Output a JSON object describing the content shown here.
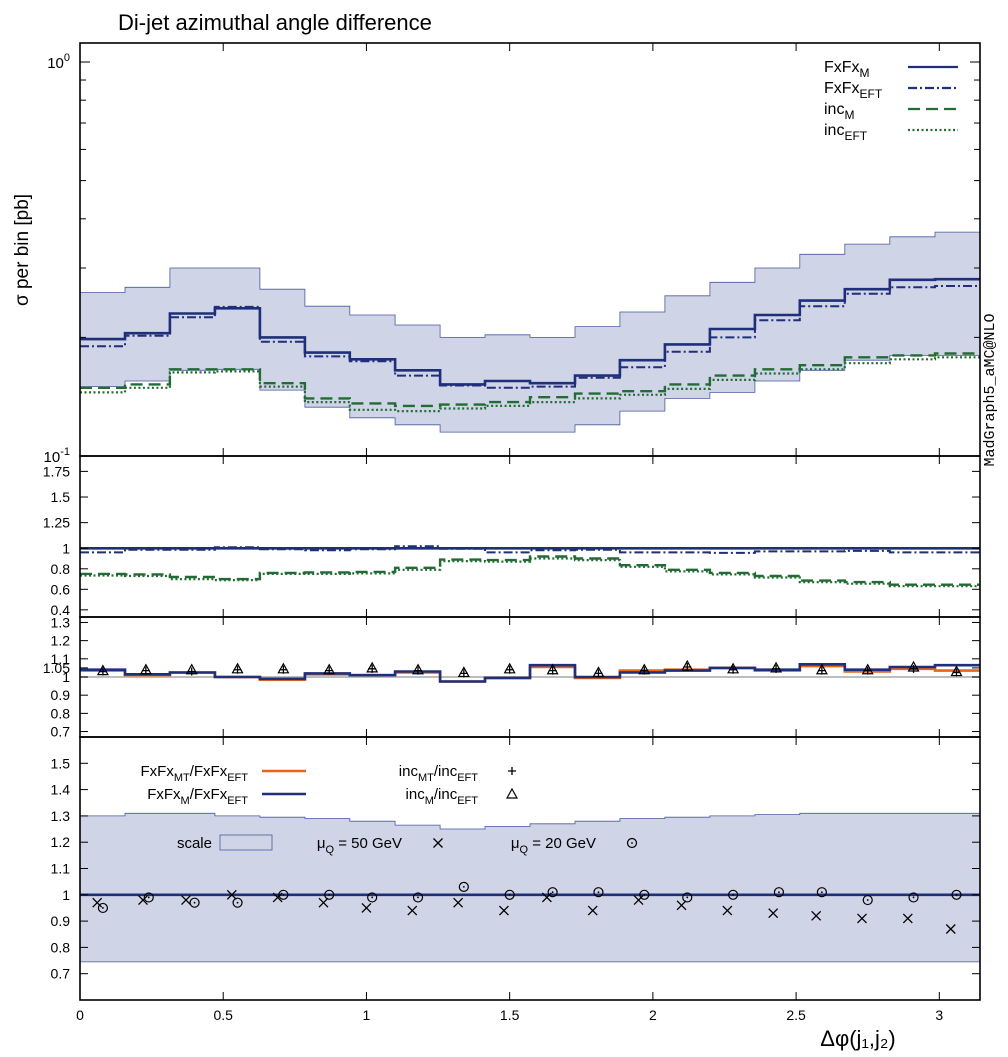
{
  "title": "Di-jet azimuthal angle difference",
  "watermark": "MadGraph5_aMC@NLO",
  "xlabel": "Δφ(j₁,j₂)",
  "colors": {
    "navy": "#1f2f7a",
    "green": "#236b35",
    "orange": "#e8641a",
    "band": "#cfd4e6",
    "band_edge": "#4a5aa0"
  },
  "chart_data": [
    {
      "panel": "main",
      "type": "line",
      "ylabel": "σ per bin [pb]",
      "yscale": "log",
      "ylim": [
        0.1,
        1.0
      ],
      "ytick_labels": [
        "10⁻¹",
        "10⁰"
      ],
      "x_edges": [
        0,
        0.157,
        0.314,
        0.471,
        0.628,
        0.785,
        0.942,
        1.1,
        1.257,
        1.414,
        1.571,
        1.728,
        1.885,
        2.042,
        2.199,
        2.356,
        2.513,
        2.67,
        2.827,
        2.985,
        3.142
      ],
      "series": [
        {
          "name": "FxFx_M",
          "style": "solid",
          "values": [
            0.198,
            0.205,
            0.23,
            0.237,
            0.2,
            0.183,
            0.176,
            0.165,
            0.152,
            0.155,
            0.153,
            0.16,
            0.175,
            0.192,
            0.21,
            0.228,
            0.248,
            0.265,
            0.28,
            0.281
          ]
        },
        {
          "name": "FxFx_EFT",
          "style": "dashdot",
          "values": [
            0.19,
            0.202,
            0.225,
            0.239,
            0.195,
            0.179,
            0.174,
            0.16,
            0.151,
            0.149,
            0.15,
            0.158,
            0.168,
            0.184,
            0.2,
            0.221,
            0.24,
            0.258,
            0.268,
            0.27
          ]
        },
        {
          "name": "inc_M",
          "style": "dashed",
          "values": [
            0.149,
            0.152,
            0.166,
            0.166,
            0.153,
            0.14,
            0.136,
            0.134,
            0.135,
            0.137,
            0.141,
            0.144,
            0.146,
            0.152,
            0.16,
            0.166,
            0.17,
            0.178,
            0.18,
            0.182
          ]
        },
        {
          "name": "inc_EFT",
          "style": "dotted",
          "values": [
            0.145,
            0.149,
            0.163,
            0.164,
            0.15,
            0.137,
            0.131,
            0.13,
            0.132,
            0.134,
            0.137,
            0.14,
            0.143,
            0.148,
            0.156,
            0.162,
            0.166,
            0.172,
            0.176,
            0.178
          ]
        }
      ],
      "band": {
        "name": "scale",
        "lower": [
          0.15,
          0.155,
          0.165,
          0.166,
          0.147,
          0.133,
          0.125,
          0.12,
          0.115,
          0.115,
          0.115,
          0.12,
          0.13,
          0.14,
          0.145,
          0.155,
          0.165,
          0.175,
          0.18,
          0.18
        ],
        "upper": [
          0.26,
          0.268,
          0.3,
          0.3,
          0.265,
          0.24,
          0.228,
          0.215,
          0.2,
          0.203,
          0.2,
          0.213,
          0.232,
          0.255,
          0.276,
          0.3,
          0.325,
          0.345,
          0.36,
          0.37
        ]
      },
      "legend_position": "top-right",
      "legend": [
        "FxFx_M",
        "FxFx_EFT",
        "inc_M",
        "inc_EFT"
      ]
    },
    {
      "panel": "ratio1",
      "type": "line",
      "ylim": [
        0.33,
        1.9
      ],
      "yticks": [
        0.4,
        0.6,
        0.8,
        1,
        1.25,
        1.5,
        1.75
      ],
      "ytick_labels": [
        "0.4",
        "0.6",
        "0.8",
        "1",
        "1.25",
        "1.5",
        "1.75"
      ],
      "series": [
        {
          "name": "FxFx_M",
          "style": "solid",
          "values": [
            1,
            1,
            1,
            1,
            1,
            1,
            1,
            1,
            1,
            1,
            1,
            1,
            1,
            1,
            1,
            1,
            1,
            1,
            1,
            1
          ]
        },
        {
          "name": "FxFx_EFT",
          "style": "dashdot",
          "values": [
            0.96,
            0.985,
            0.985,
            1.01,
            0.99,
            0.98,
            0.99,
            1.02,
            0.995,
            0.96,
            0.98,
            0.985,
            0.96,
            0.96,
            0.955,
            0.97,
            0.97,
            0.975,
            0.96,
            0.96
          ]
        },
        {
          "name": "inc_M",
          "style": "dashed",
          "values": [
            0.75,
            0.745,
            0.72,
            0.7,
            0.76,
            0.765,
            0.77,
            0.81,
            0.89,
            0.885,
            0.92,
            0.9,
            0.835,
            0.79,
            0.76,
            0.73,
            0.685,
            0.67,
            0.645,
            0.645
          ]
        },
        {
          "name": "inc_EFT",
          "style": "dotted",
          "values": [
            0.735,
            0.73,
            0.7,
            0.69,
            0.75,
            0.75,
            0.755,
            0.79,
            0.875,
            0.87,
            0.9,
            0.885,
            0.82,
            0.775,
            0.745,
            0.715,
            0.67,
            0.655,
            0.63,
            0.63
          ]
        }
      ]
    },
    {
      "panel": "ratio2",
      "type": "line",
      "ylim": [
        0.67,
        1.33
      ],
      "yticks": [
        0.7,
        0.8,
        0.9,
        1,
        1.05,
        1.1,
        1.2,
        1.3
      ],
      "ytick_labels": [
        "0.7",
        "0.8",
        "0.9",
        "1",
        "1.05",
        "1.1",
        "1.2",
        "1.3"
      ],
      "series": [
        {
          "name": "FxFx_MT/FxFx_EFT",
          "style": "solid",
          "values": [
            1.035,
            1.01,
            1.025,
            1.0,
            0.985,
            1.015,
            1.01,
            1.025,
            0.975,
            0.995,
            1.055,
            0.995,
            1.035,
            1.04,
            1.05,
            1.035,
            1.06,
            1.03,
            1.045,
            1.035
          ]
        },
        {
          "name": "FxFx_M/FxFx_EFT",
          "style": "solid",
          "values": [
            1.04,
            1.015,
            1.025,
            1.0,
            0.99,
            1.02,
            1.01,
            1.03,
            0.975,
            0.995,
            1.065,
            1.0,
            1.025,
            1.035,
            1.05,
            1.04,
            1.07,
            1.04,
            1.055,
            1.065
          ]
        }
      ],
      "markers": [
        {
          "name": "inc_MT/inc_EFT",
          "symbol": "plus",
          "x": [
            0.08,
            0.23,
            0.39,
            0.55,
            0.71,
            0.87,
            1.02,
            1.18,
            1.34,
            1.5,
            1.65,
            1.81,
            1.97,
            2.12,
            2.28,
            2.43,
            2.59,
            2.75,
            2.91,
            3.06
          ],
          "y": [
            1.03,
            1.035,
            1.03,
            1.04,
            1.04,
            1.035,
            1.045,
            1.035,
            1.02,
            1.04,
            1.035,
            1.02,
            1.035,
            1.055,
            1.04,
            1.045,
            1.035,
            1.035,
            1.045,
            1.025
          ]
        },
        {
          "name": "inc_M/inc_EFT",
          "symbol": "triangle",
          "x": [
            0.08,
            0.23,
            0.39,
            0.55,
            0.71,
            0.87,
            1.02,
            1.18,
            1.34,
            1.5,
            1.65,
            1.81,
            1.97,
            2.12,
            2.28,
            2.43,
            2.59,
            2.75,
            2.91,
            3.06
          ],
          "y": [
            1.035,
            1.04,
            1.04,
            1.045,
            1.045,
            1.04,
            1.05,
            1.04,
            1.025,
            1.045,
            1.04,
            1.025,
            1.04,
            1.06,
            1.045,
            1.05,
            1.04,
            1.04,
            1.055,
            1.03
          ]
        }
      ]
    },
    {
      "panel": "ratio3",
      "type": "line",
      "ylim": [
        0.6,
        1.6
      ],
      "yticks": [
        0.7,
        0.8,
        0.9,
        1,
        1.1,
        1.2,
        1.3,
        1.4,
        1.5
      ],
      "ytick_labels": [
        "0.7",
        "0.8",
        "0.9",
        "1",
        "1.1",
        "1.2",
        "1.3",
        "1.4",
        "1.5"
      ],
      "band": {
        "name": "scale",
        "lower": [
          0.745,
          0.745,
          0.745,
          0.745,
          0.745,
          0.745,
          0.745,
          0.745,
          0.745,
          0.745,
          0.745,
          0.745,
          0.745,
          0.745,
          0.745,
          0.745,
          0.745,
          0.745,
          0.745,
          0.745
        ],
        "upper": [
          1.3,
          1.31,
          1.31,
          1.3,
          1.295,
          1.29,
          1.28,
          1.265,
          1.25,
          1.26,
          1.27,
          1.28,
          1.29,
          1.295,
          1.3,
          1.305,
          1.31,
          1.31,
          1.31,
          1.31
        ]
      },
      "series": [
        {
          "name": "central",
          "style": "solid",
          "values": [
            1,
            1,
            1,
            1,
            1,
            1,
            1,
            1,
            1,
            1,
            1,
            1,
            1,
            1,
            1,
            1,
            1,
            1,
            1,
            1
          ]
        }
      ],
      "markers": [
        {
          "name": "μ_Q = 50 GeV",
          "symbol": "cross",
          "x": [
            0.06,
            0.22,
            0.37,
            0.53,
            0.69,
            0.85,
            1.0,
            1.16,
            1.32,
            1.48,
            1.63,
            1.79,
            1.95,
            2.1,
            2.26,
            2.42,
            2.57,
            2.73,
            2.89,
            3.04
          ],
          "y": [
            0.97,
            0.98,
            0.98,
            1.0,
            0.99,
            0.97,
            0.95,
            0.94,
            0.97,
            0.94,
            0.99,
            0.94,
            0.98,
            0.96,
            0.94,
            0.93,
            0.92,
            0.91,
            0.91,
            0.87
          ]
        },
        {
          "name": "μ_Q = 20 GeV",
          "symbol": "circle",
          "x": [
            0.08,
            0.24,
            0.4,
            0.55,
            0.71,
            0.87,
            1.02,
            1.18,
            1.34,
            1.5,
            1.65,
            1.81,
            1.97,
            2.12,
            2.28,
            2.44,
            2.59,
            2.75,
            2.91,
            3.06
          ],
          "y": [
            0.95,
            0.99,
            0.97,
            0.97,
            1.0,
            1.0,
            0.99,
            0.99,
            1.03,
            1.0,
            1.01,
            1.01,
            1.0,
            0.99,
            1.0,
            1.01,
            1.01,
            0.98,
            0.99,
            1.0
          ]
        }
      ]
    }
  ],
  "x_axis": {
    "xlim": [
      0,
      3.142
    ],
    "ticks": [
      0,
      0.5,
      1,
      1.5,
      2,
      2.5,
      3
    ],
    "tick_labels": [
      "0",
      "0.5",
      "1",
      "1.5",
      "2",
      "2.5",
      "3"
    ]
  },
  "legends": {
    "main": [
      {
        "base": "FxFx",
        "sub": "M",
        "style": "solid",
        "color": "navy"
      },
      {
        "base": "FxFx",
        "sub": "EFT",
        "style": "dashdot",
        "color": "navy"
      },
      {
        "base": "inc",
        "sub": "M",
        "style": "dashed",
        "color": "green"
      },
      {
        "base": "inc",
        "sub": "EFT",
        "style": "dotted",
        "color": "green"
      }
    ],
    "ratio2": [
      {
        "text_a": "FxFx",
        "sub_a": "MT",
        "text_b": "/FxFx",
        "sub_b": "EFT",
        "color": "orange"
      },
      {
        "text_a": "FxFx",
        "sub_a": "M",
        "text_b": "/FxFx",
        "sub_b": "EFT",
        "color": "navy"
      },
      {
        "text_a": "inc",
        "sub_a": "MT",
        "text_b": "/inc",
        "sub_b": "EFT",
        "symbol": "plus"
      },
      {
        "text_a": "inc",
        "sub_a": "M",
        "text_b": "/inc",
        "sub_b": "EFT",
        "symbol": "triangle"
      }
    ],
    "ratio3": [
      {
        "text": "scale",
        "symbol": "band"
      },
      {
        "text_a": "μ",
        "sub_a": "Q",
        "text_b": " = 50 GeV",
        "symbol": "cross"
      },
      {
        "text_a": "μ",
        "sub_a": "Q",
        "text_b": " = 20 GeV",
        "symbol": "circle"
      }
    ]
  }
}
